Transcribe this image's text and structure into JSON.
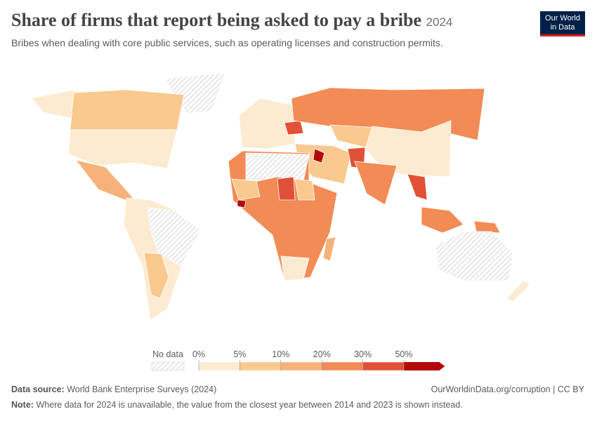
{
  "header": {
    "title": "Share of firms that report being asked to pay a bribe",
    "year": "2024",
    "subtitle": "Bribes when dealing with core public services, such as operating licenses and construction permits.",
    "logo": [
      "Our World",
      "in Data"
    ]
  },
  "legend": {
    "no_data": "No data",
    "ticks": [
      {
        "value": 0,
        "label": "0%"
      },
      {
        "value": 5,
        "label": "5%"
      },
      {
        "value": 10,
        "label": "10%"
      },
      {
        "value": 20,
        "label": "20%"
      },
      {
        "value": 30,
        "label": "30%"
      },
      {
        "value": 50,
        "label": "50%"
      }
    ],
    "colors": [
      "#fdebd1",
      "#f9c98f",
      "#f6b27a",
      "#f28b55",
      "#e15137",
      "#b2080a"
    ]
  },
  "footer": {
    "source_label": "Data source:",
    "source": "World Bank Enterprise Surveys (2024)",
    "link": "OurWorldinData.org/corruption | CC BY",
    "note_label": "Note:",
    "note": "Where data for 2024 is unavailable, the value from the closest year between 2014 and 2023 is shown instead."
  }
}
